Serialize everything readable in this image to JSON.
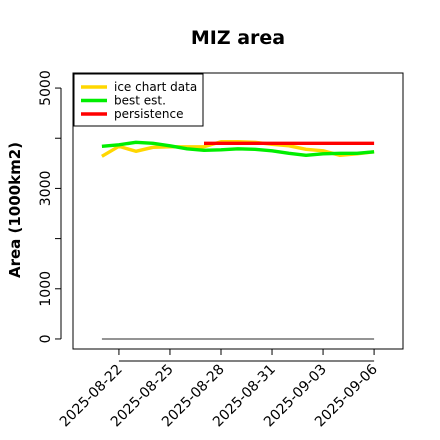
{
  "chart_data": {
    "type": "line",
    "title": "MIZ area",
    "xlabel": "",
    "ylabel": "Area (1000km2)",
    "x_tick_labels": [
      "2025-08-22",
      "2025-08-25",
      "2025-08-28",
      "2025-08-31",
      "2025-09-03",
      "2025-09-06"
    ],
    "x_tick_days": [
      1,
      4,
      7,
      10,
      13,
      16
    ],
    "xlim_days": [
      -1.7,
      17.7
    ],
    "ylim": [
      -200,
      5300
    ],
    "y_ticks": [
      0,
      1000,
      2000,
      3000,
      4000,
      5000
    ],
    "y_tick_labels": [
      "0",
      "1000",
      "",
      "3000",
      "",
      "5000"
    ],
    "baseline_value": 0,
    "legend": {
      "placement": "top-left",
      "entries": [
        "ice chart data",
        "best est.",
        "persistence"
      ]
    },
    "series": [
      {
        "name": "ice chart data",
        "color": "#FFD700",
        "x_days": [
          0,
          1,
          2,
          3,
          4,
          5,
          6,
          7,
          8,
          9,
          10,
          11,
          12,
          13,
          14,
          15,
          16
        ],
        "values": [
          3640,
          3840,
          3740,
          3820,
          3830,
          3830,
          3830,
          3930,
          3930,
          3920,
          3880,
          3850,
          3780,
          3750,
          3660,
          3690,
          3730
        ]
      },
      {
        "name": "best est.",
        "color": "#00EE00",
        "x_days": [
          0,
          1,
          2,
          3,
          4,
          5,
          6,
          7,
          8,
          9,
          10,
          11,
          12,
          13,
          14,
          15,
          16
        ],
        "values": [
          3840,
          3870,
          3920,
          3900,
          3850,
          3790,
          3760,
          3770,
          3790,
          3780,
          3750,
          3700,
          3660,
          3690,
          3700,
          3700,
          3730
        ]
      },
      {
        "name": "persistence",
        "color": "#FF0000",
        "x_days": [
          6,
          16
        ],
        "values": [
          3900,
          3900
        ]
      }
    ]
  }
}
